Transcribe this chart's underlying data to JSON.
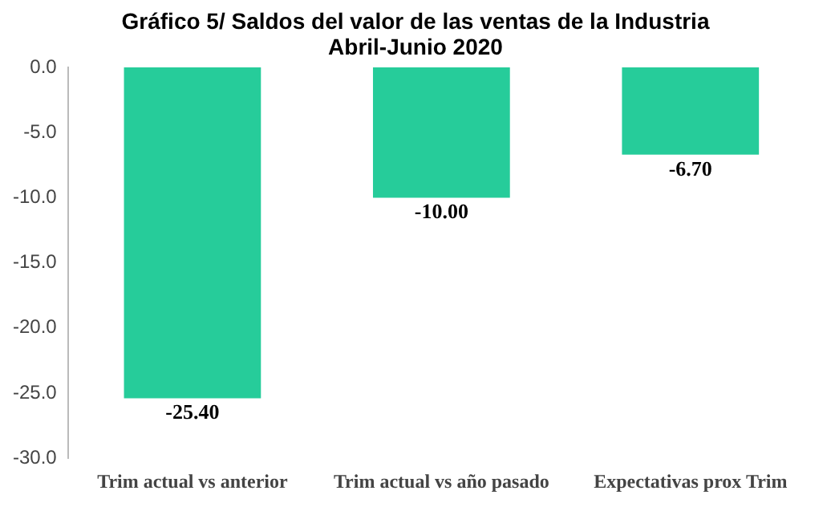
{
  "chart_data": {
    "type": "bar",
    "title": "Gráfico 5/ Saldos del valor de las ventas de la Industria",
    "subtitle": "Abril-Junio 2020",
    "categories": [
      "Trim actual vs anterior",
      "Trim actual vs año pasado",
      "Expectativas prox Trim"
    ],
    "values": [
      -25.4,
      -10.0,
      -6.7
    ],
    "value_labels": [
      "-25.40",
      "-10.00",
      "-6.70"
    ],
    "color": "#26cc9a",
    "ylim": [
      -30,
      0
    ],
    "yticks": [
      {
        "value": 0,
        "label": "0.0"
      },
      {
        "value": -5,
        "label": "-5.0"
      },
      {
        "value": -10,
        "label": "-10.0"
      },
      {
        "value": -15,
        "label": "-15.0"
      },
      {
        "value": -20,
        "label": "-20.0"
      },
      {
        "value": -25,
        "label": "-25.0"
      },
      {
        "value": -30,
        "label": "-30.0"
      }
    ],
    "grid": false,
    "legend": false
  }
}
